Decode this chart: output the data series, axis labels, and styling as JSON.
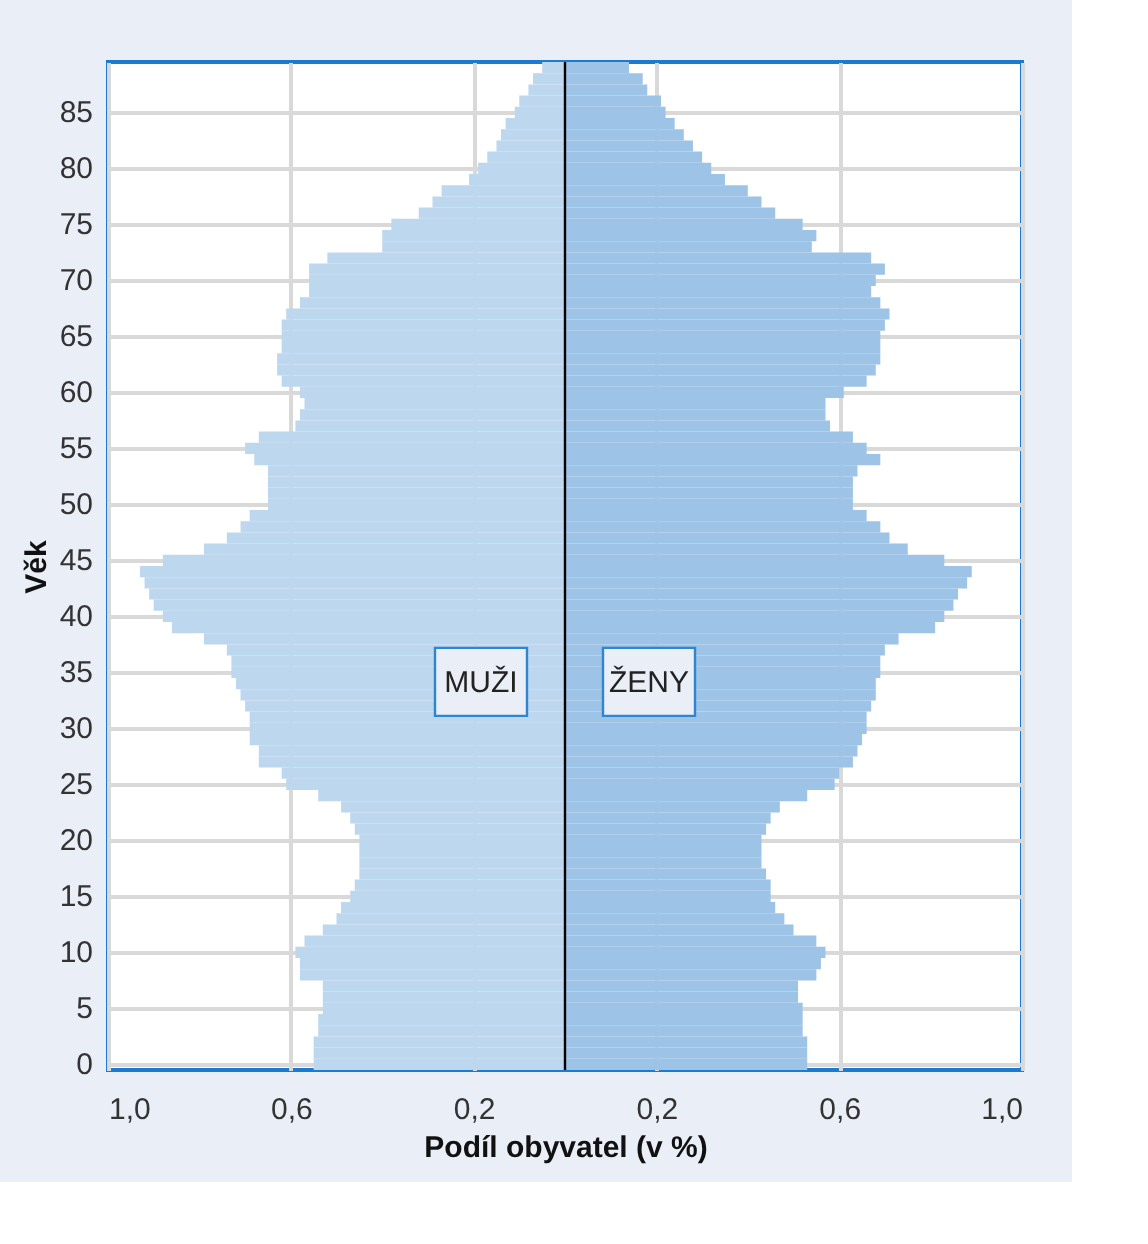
{
  "chart_data": {
    "type": "bar",
    "orientation": "horizontal",
    "xlabel": "Podíl obyvatel (v %)",
    "ylabel": "Věk",
    "categories": [
      null,
      null,
      null,
      null,
      "85",
      null,
      null,
      null,
      null,
      "80",
      null,
      null,
      null,
      null,
      "75",
      null,
      null,
      null,
      null,
      "70",
      null,
      null,
      null,
      null,
      "65",
      null,
      null,
      null,
      null,
      "60",
      null,
      null,
      null,
      null,
      "55",
      null,
      null,
      null,
      null,
      "50",
      null,
      null,
      null,
      null,
      "45",
      null,
      null,
      null,
      null,
      "40",
      null,
      null,
      null,
      null,
      "35",
      null,
      null,
      null,
      null,
      "30",
      null,
      null,
      null,
      null,
      "25",
      null,
      null,
      null,
      null,
      "20",
      null,
      null,
      null,
      null,
      "15",
      null,
      null,
      null,
      null,
      "10",
      null,
      null,
      null,
      null,
      "5",
      null,
      null,
      null,
      null,
      "0"
    ],
    "series": [
      {
        "name": "MUŽI",
        "color": "#bdd7ee",
        "values": [
          -0.05,
          -0.07,
          -0.08,
          -0.1,
          -0.11,
          -0.13,
          -0.14,
          -0.15,
          -0.17,
          -0.19,
          -0.21,
          -0.27,
          -0.29,
          -0.32,
          -0.38,
          -0.4,
          -0.4,
          -0.52,
          -0.56,
          -0.56,
          -0.56,
          -0.58,
          -0.61,
          -0.62,
          -0.62,
          -0.62,
          -0.63,
          -0.63,
          -0.62,
          -0.58,
          -0.57,
          -0.58,
          -0.59,
          -0.67,
          -0.7,
          -0.68,
          -0.65,
          -0.65,
          -0.65,
          -0.65,
          -0.69,
          -0.71,
          -0.74,
          -0.79,
          -0.88,
          -0.93,
          -0.92,
          -0.91,
          -0.9,
          -0.88,
          -0.86,
          -0.79,
          -0.74,
          -0.73,
          -0.73,
          -0.72,
          -0.71,
          -0.7,
          -0.69,
          -0.69,
          -0.69,
          -0.67,
          -0.67,
          -0.62,
          -0.61,
          -0.54,
          -0.49,
          -0.47,
          -0.46,
          -0.45,
          -0.45,
          -0.45,
          -0.45,
          -0.46,
          -0.47,
          -0.49,
          -0.5,
          -0.53,
          -0.57,
          -0.59,
          -0.58,
          -0.58,
          -0.53,
          -0.53,
          -0.53,
          -0.54,
          -0.54,
          -0.55,
          -0.55,
          -0.55
        ]
      },
      {
        "name": "ŽENY",
        "color": "#9dc3e6",
        "values": [
          0.14,
          0.17,
          0.18,
          0.21,
          0.22,
          0.24,
          0.26,
          0.28,
          0.3,
          0.32,
          0.35,
          0.4,
          0.43,
          0.46,
          0.52,
          0.55,
          0.54,
          0.67,
          0.7,
          0.68,
          0.67,
          0.69,
          0.71,
          0.7,
          0.69,
          0.69,
          0.69,
          0.68,
          0.66,
          0.61,
          0.57,
          0.57,
          0.58,
          0.63,
          0.66,
          0.69,
          0.64,
          0.63,
          0.63,
          0.63,
          0.66,
          0.69,
          0.71,
          0.75,
          0.83,
          0.89,
          0.88,
          0.86,
          0.85,
          0.83,
          0.81,
          0.73,
          0.7,
          0.69,
          0.69,
          0.68,
          0.68,
          0.67,
          0.66,
          0.66,
          0.65,
          0.64,
          0.63,
          0.6,
          0.59,
          0.53,
          0.47,
          0.45,
          0.44,
          0.43,
          0.43,
          0.43,
          0.44,
          0.45,
          0.45,
          0.46,
          0.48,
          0.5,
          0.55,
          0.57,
          0.56,
          0.55,
          0.51,
          0.51,
          0.52,
          0.52,
          0.52,
          0.53,
          0.53,
          0.53
        ]
      }
    ],
    "xlim": [
      -1.0,
      1.0
    ],
    "xticks": [
      {
        "value": -1.0,
        "label": "1,0"
      },
      {
        "value": -0.6,
        "label": "0,6"
      },
      {
        "value": -0.2,
        "label": "0,2"
      },
      {
        "value": 0.2,
        "label": "0,2"
      },
      {
        "value": 0.6,
        "label": "0,6"
      },
      {
        "value": 1.0,
        "label": "1,0"
      }
    ],
    "ref_lines": [
      {
        "axis": "x",
        "value": 0,
        "color": "#000000"
      }
    ],
    "stacked": true,
    "grid": true,
    "legend": false
  }
}
